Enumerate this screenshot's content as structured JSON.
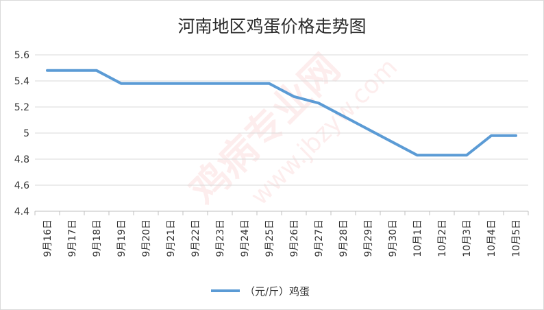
{
  "chart_data": {
    "type": "line",
    "title": "河南地区鸡蛋价格走势图",
    "categories": [
      "9月16日",
      "9月17日",
      "9月18日",
      "9月19日",
      "9月20日",
      "9月21日",
      "9月22日",
      "9月23日",
      "9月24日",
      "9月25日",
      "9月26日",
      "9月27日",
      "9月28日",
      "9月29日",
      "9月30日",
      "10月1日",
      "10月2日",
      "10月3日",
      "10月4日",
      "10月5日"
    ],
    "series": [
      {
        "name": "（元/斤）鸡蛋",
        "values": [
          5.48,
          5.48,
          5.48,
          5.38,
          5.38,
          5.38,
          5.38,
          5.38,
          5.38,
          5.38,
          5.28,
          5.23,
          5.13,
          5.03,
          4.93,
          4.83,
          4.83,
          4.83,
          4.98,
          4.98
        ],
        "color": "#5b9bd5"
      }
    ],
    "ylim": [
      4.4,
      5.6
    ],
    "yticks": [
      4.4,
      4.6,
      4.8,
      5,
      5.2,
      5.4,
      5.6
    ],
    "ytick_labels": [
      "4.4",
      "4.6",
      "4.8",
      "5",
      "5.2",
      "5.4",
      "5.6"
    ],
    "xlabel": "",
    "ylabel": "",
    "grid": true,
    "legend": "bottom"
  },
  "watermark": {
    "text": "鸡病专业网",
    "url": "www.jbzyw.com"
  }
}
